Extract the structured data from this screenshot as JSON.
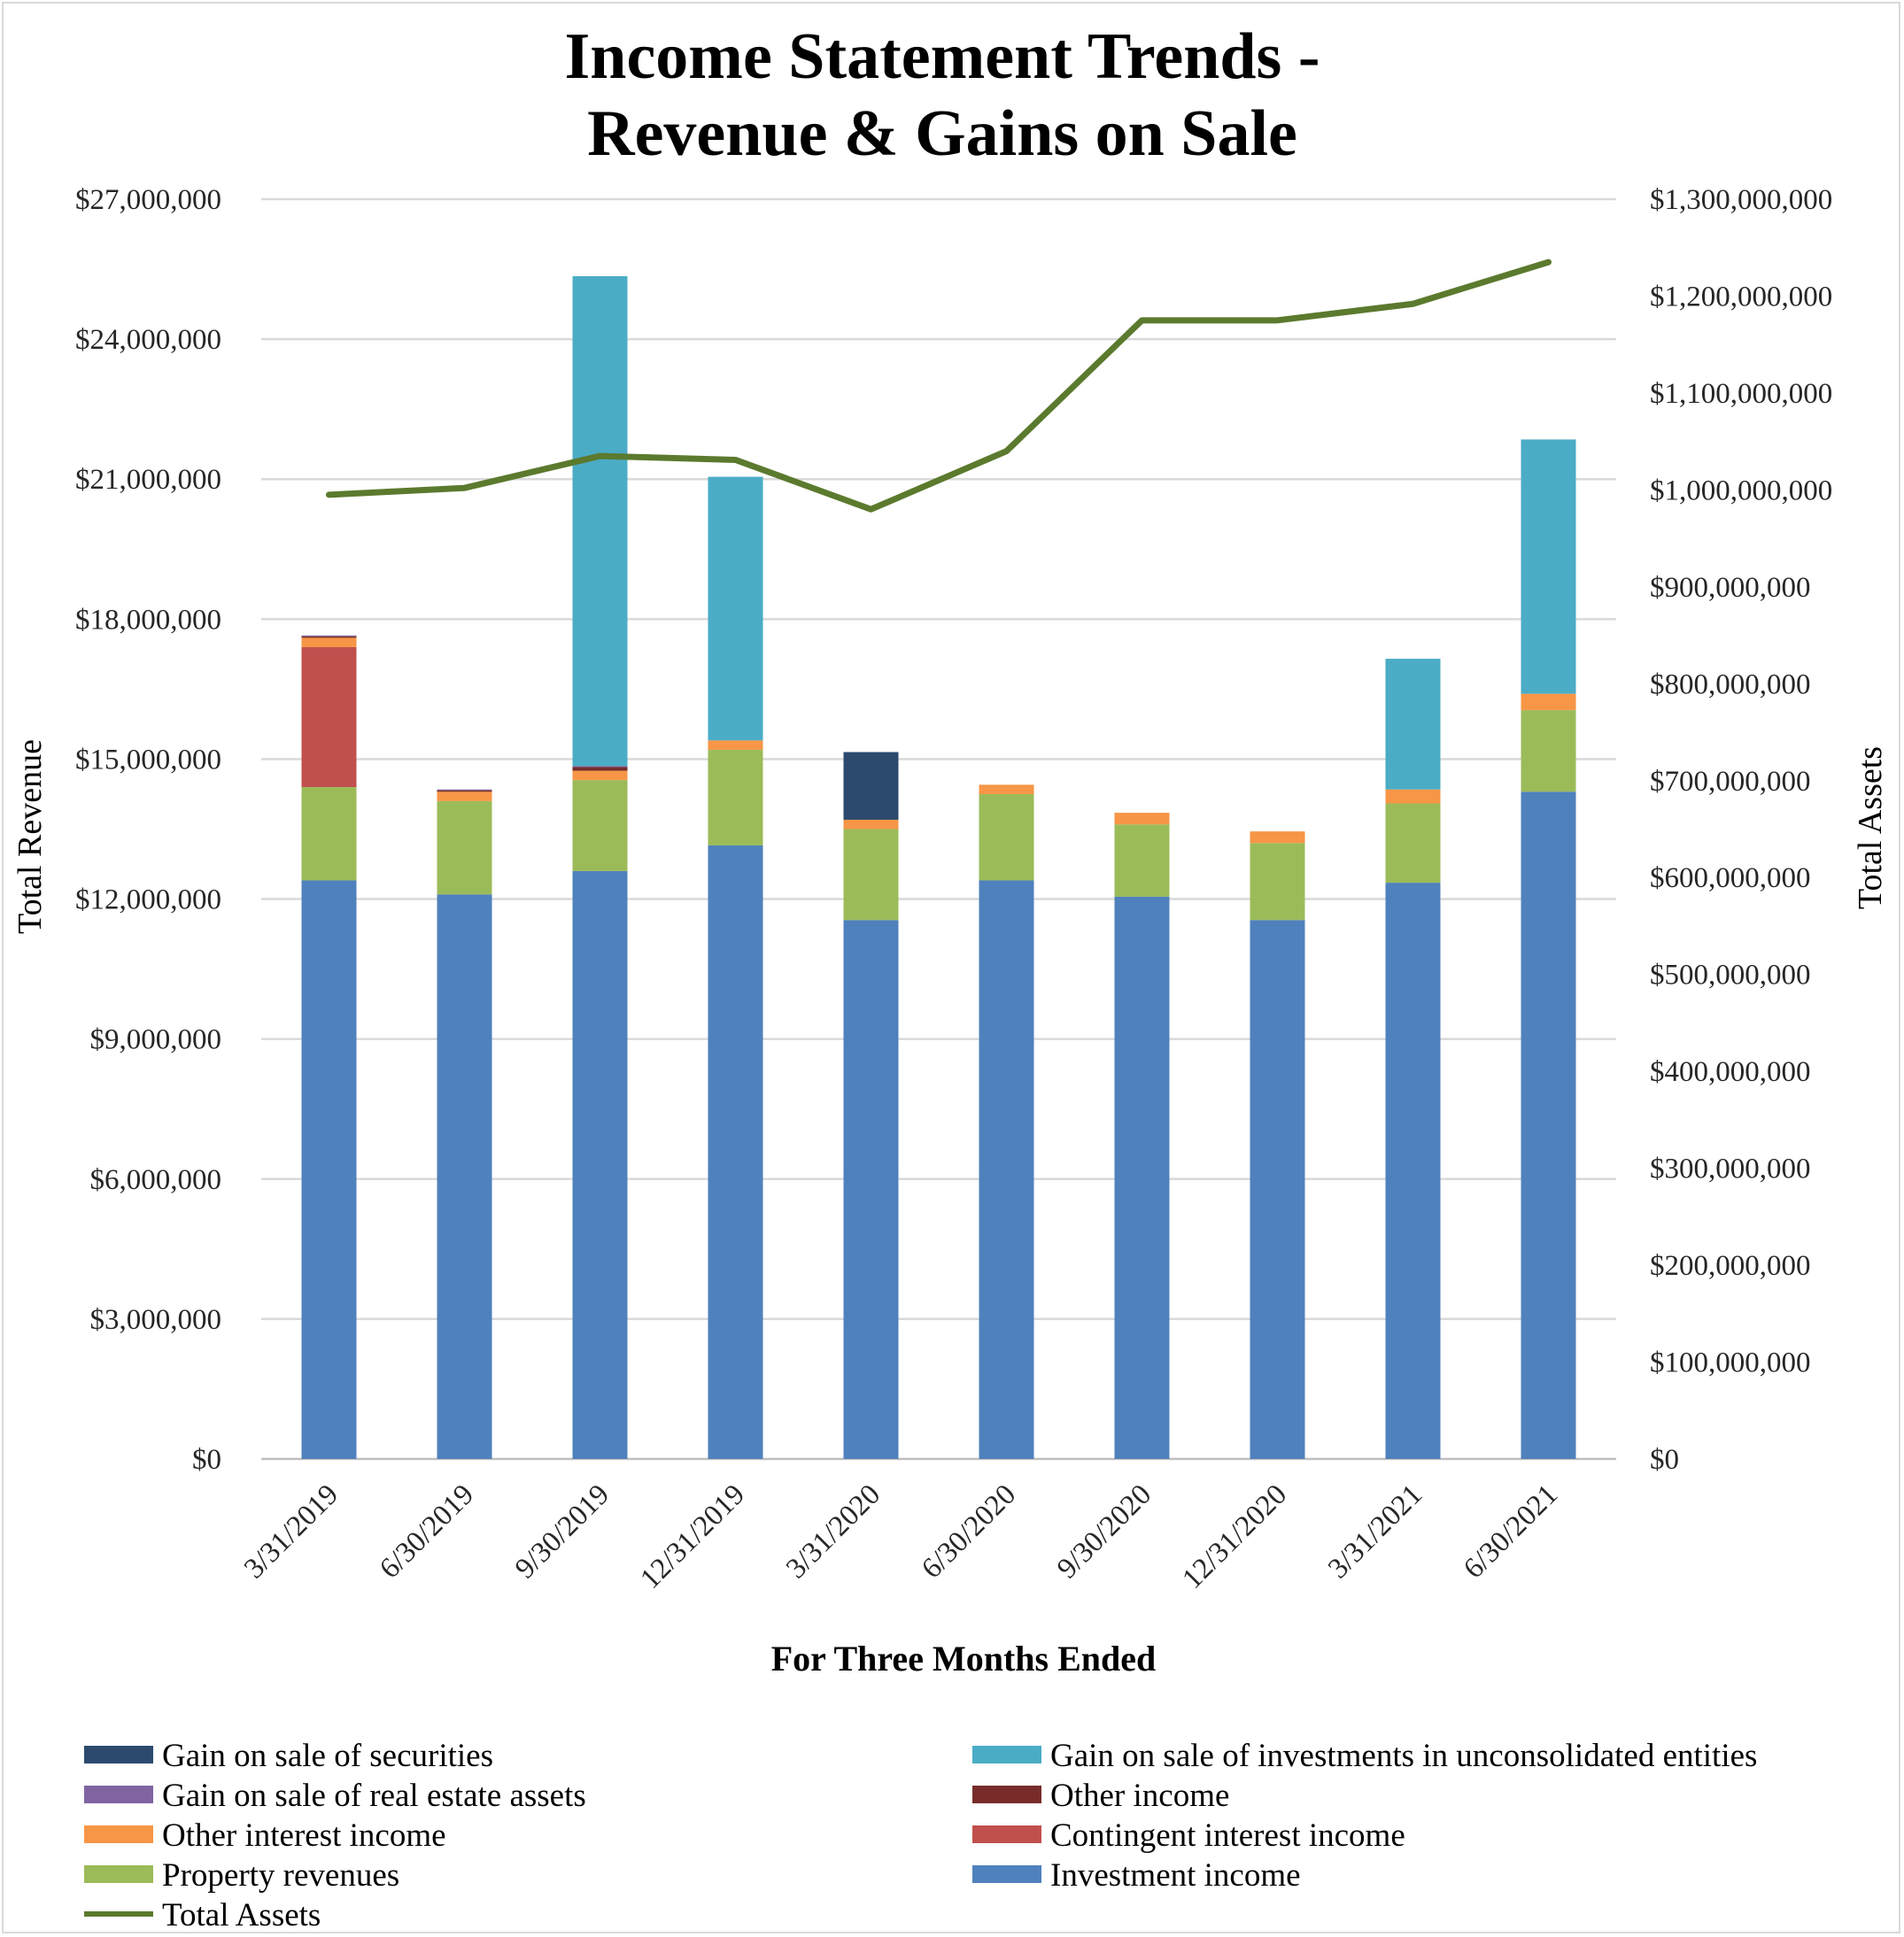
{
  "chart_data": {
    "type": "bar",
    "stacked": true,
    "title": [
      "Income Statement Trends -",
      "Revenue & Gains on Sale"
    ],
    "xlabel": "For Three Months Ended",
    "ylabel": "Total Revenue",
    "y2label": "Total Assets",
    "categories": [
      "3/31/2019",
      "6/30/2019",
      "9/30/2019",
      "12/31/2019",
      "3/31/2020",
      "6/30/2020",
      "9/30/2020",
      "12/31/2020",
      "3/31/2021",
      "6/30/2021"
    ],
    "ylim": [
      0,
      27000000
    ],
    "y2lim": [
      0,
      1300000000
    ],
    "yticks": [
      0,
      3000000,
      6000000,
      9000000,
      12000000,
      15000000,
      18000000,
      21000000,
      24000000,
      27000000
    ],
    "ytick_labels": [
      "$0",
      "$3,000,000",
      "$6,000,000",
      "$9,000,000",
      "$12,000,000",
      "$15,000,000",
      "$18,000,000",
      "$21,000,000",
      "$24,000,000",
      "$27,000,000"
    ],
    "y2ticks": [
      0,
      100000000,
      200000000,
      300000000,
      400000000,
      500000000,
      600000000,
      700000000,
      800000000,
      900000000,
      1000000000,
      1100000000,
      1200000000,
      1300000000
    ],
    "y2tick_labels": [
      "$0",
      "$100,000,000",
      "$200,000,000",
      "$300,000,000",
      "$400,000,000",
      "$500,000,000",
      "$600,000,000",
      "$700,000,000",
      "$800,000,000",
      "$900,000,000",
      "$1,000,000,000",
      "$1,100,000,000",
      "$1,200,000,000",
      "$1,300,000,000"
    ],
    "grid": true,
    "legend_position": "bottom",
    "series": [
      {
        "name": "Investment income",
        "color": "#4f81bd",
        "values": [
          12400000,
          12100000,
          12600000,
          13150000,
          11550000,
          12400000,
          12050000,
          11550000,
          12350000,
          14300000
        ]
      },
      {
        "name": "Property revenues",
        "color": "#9bbb59",
        "values": [
          2000000,
          2000000,
          1950000,
          2050000,
          1950000,
          1850000,
          1550000,
          1650000,
          1700000,
          1750000
        ]
      },
      {
        "name": "Contingent interest income",
        "color": "#c0504d",
        "values": [
          3000000,
          0,
          0,
          0,
          0,
          0,
          0,
          0,
          0,
          0
        ]
      },
      {
        "name": "Other interest income",
        "color": "#f79646",
        "values": [
          200000,
          200000,
          200000,
          200000,
          200000,
          200000,
          250000,
          250000,
          300000,
          350000
        ]
      },
      {
        "name": "Other income",
        "color": "#772c2a",
        "values": [
          30000,
          30000,
          80000,
          0,
          0,
          0,
          0,
          0,
          0,
          0
        ]
      },
      {
        "name": "Gain on sale of real estate assets",
        "color": "#8064a2",
        "values": [
          20000,
          20000,
          20000,
          0,
          0,
          0,
          0,
          0,
          0,
          0
        ]
      },
      {
        "name": "Gain on sale of securities",
        "color": "#2c4a6e",
        "values": [
          0,
          0,
          0,
          0,
          1450000,
          0,
          0,
          0,
          0,
          0
        ]
      },
      {
        "name": "Gain on sale of investments in unconsolidated entities",
        "color": "#4bacc6",
        "values": [
          0,
          0,
          10500000,
          5650000,
          0,
          0,
          0,
          0,
          2800000,
          5450000
        ]
      }
    ],
    "line_series": {
      "name": "Total Assets",
      "color": "#5b7a2e",
      "axis": "right",
      "values": [
        995000000,
        1002000000,
        1035000000,
        1031000000,
        980000000,
        1040000000,
        1175000000,
        1175000000,
        1192000000,
        1235000000
      ]
    },
    "legend": [
      {
        "name": "Gain on sale of securities",
        "color": "#2c4a6e",
        "kind": "box"
      },
      {
        "name": "Gain on sale of investments in unconsolidated entities",
        "color": "#4bacc6",
        "kind": "box"
      },
      {
        "name": "Gain on sale of real estate assets",
        "color": "#8064a2",
        "kind": "box"
      },
      {
        "name": "Other income",
        "color": "#772c2a",
        "kind": "box"
      },
      {
        "name": "Other interest income",
        "color": "#f79646",
        "kind": "box"
      },
      {
        "name": "Contingent interest income",
        "color": "#c0504d",
        "kind": "box"
      },
      {
        "name": "Property revenues",
        "color": "#9bbb59",
        "kind": "box"
      },
      {
        "name": "Investment income",
        "color": "#4f81bd",
        "kind": "box"
      },
      {
        "name": "Total Assets",
        "color": "#5b7a2e",
        "kind": "line"
      }
    ]
  }
}
